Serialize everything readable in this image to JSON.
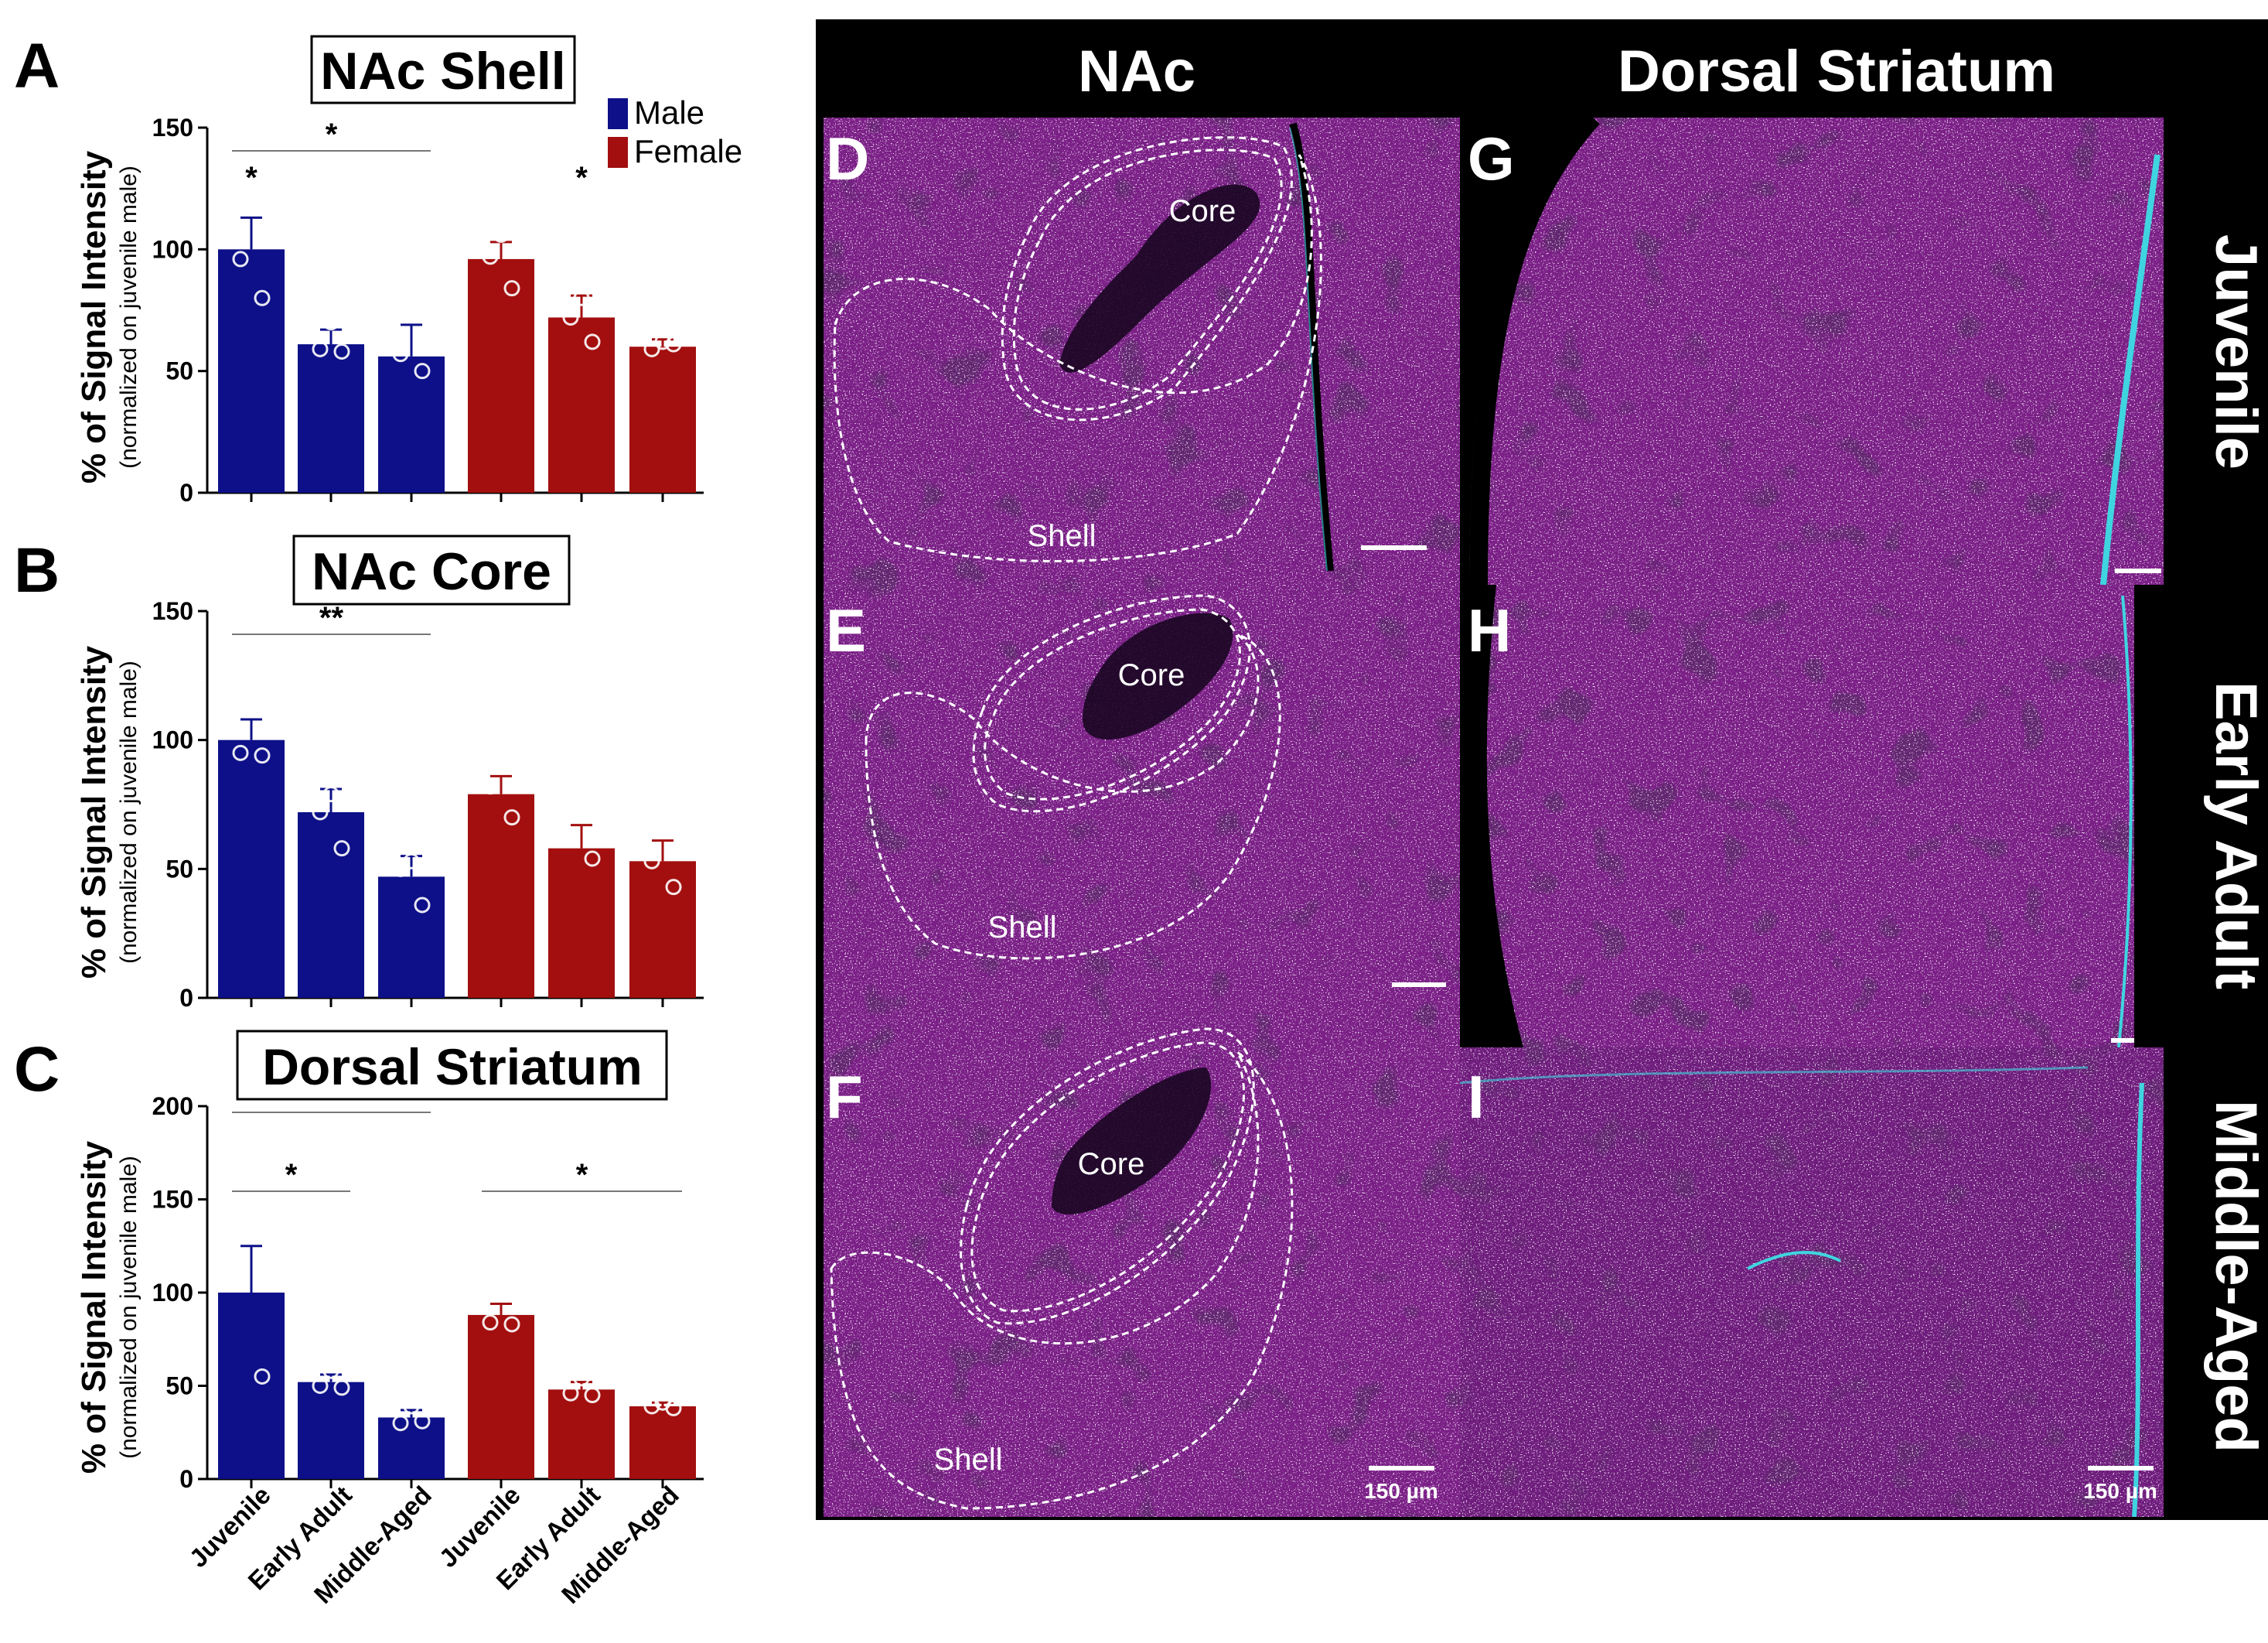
{
  "chart_data": [
    {
      "type": "bar",
      "panel": "A",
      "title": "NAc Shell",
      "ylabel": "% of Signal Intensity",
      "ylabel_sub": "(normalized on juvenile male)",
      "ylim": [
        0,
        150
      ],
      "yticks": [
        "0",
        "50",
        "100",
        "150"
      ],
      "legend": {
        "position": "top-right",
        "entries": [
          {
            "name": "Male",
            "color": "#0d1088"
          },
          {
            "name": "Female",
            "color": "#a30f0f"
          }
        ]
      },
      "series": [
        {
          "name": "Male",
          "color": "#0d1088",
          "means": [
            100,
            61,
            56
          ],
          "sem": [
            13,
            6,
            13
          ],
          "points": [
            [
              117,
              96,
              80
            ],
            [
              70,
              59,
              58
            ],
            [
              80,
              57,
              50
            ]
          ]
        },
        {
          "name": "Female",
          "color": "#a30f0f",
          "means": [
            96,
            72,
            60
          ],
          "sem": [
            7,
            9,
            3
          ],
          "points": [
            [
              106,
              97,
              84
            ],
            [
              80,
              72,
              62
            ],
            [
              62,
              59,
              61
            ]
          ]
        }
      ],
      "significance": [
        {
          "label": "*",
          "type": "bracket",
          "from": [
            0,
            0
          ],
          "to": [
            0,
            2
          ]
        },
        {
          "label": "*",
          "type": "above",
          "at": [
            0,
            0
          ]
        },
        {
          "label": "*",
          "type": "above",
          "at": [
            1,
            1
          ]
        }
      ]
    },
    {
      "type": "bar",
      "panel": "B",
      "title": "NAc Core",
      "ylabel": "% of Signal Intensity",
      "ylabel_sub": "(normalized on juvenile male)",
      "ylim": [
        0,
        150
      ],
      "yticks": [
        "0",
        "50",
        "100",
        "150"
      ],
      "series": [
        {
          "name": "Male",
          "color": "#0d1088",
          "means": [
            100,
            72,
            47
          ],
          "sem": [
            8,
            9,
            8
          ],
          "points": [
            [
              115,
              95,
              94
            ],
            [
              79,
              72,
              58
            ],
            [
              53,
              50,
              36
            ]
          ]
        },
        {
          "name": "Female",
          "color": "#a30f0f",
          "means": [
            79,
            58,
            53
          ],
          "sem": [
            7,
            9,
            8
          ],
          "points": [
            [
              92,
              82,
              70
            ],
            [
              73,
              62,
              54
            ],
            [
              66,
              53,
              43
            ]
          ]
        }
      ],
      "significance": [
        {
          "label": "**",
          "type": "bracket",
          "from": [
            0,
            0
          ],
          "to": [
            0,
            2
          ]
        }
      ]
    },
    {
      "type": "bar",
      "panel": "C",
      "title": "Dorsal Striatum",
      "ylabel": "% of Signal Intensity",
      "ylabel_sub": "(normalized on juvenile male)",
      "ylim": [
        0,
        200
      ],
      "yticks": [
        "0",
        "50",
        "100",
        "150",
        "200"
      ],
      "categories": [
        "Juvenile",
        "Early Adult",
        "Middle-Aged",
        "Juvenile",
        "Early Adult",
        "Middle-Aged"
      ],
      "series": [
        {
          "name": "Male",
          "color": "#0d1088",
          "means": [
            100,
            52,
            33
          ],
          "sem": [
            25,
            4,
            4
          ],
          "points": [
            [
              142,
              105,
              55
            ],
            [
              58,
              50,
              49
            ],
            [
              39,
              30,
              31
            ]
          ]
        },
        {
          "name": "Female",
          "color": "#a30f0f",
          "means": [
            88,
            48,
            39
          ],
          "sem": [
            6,
            4,
            2
          ],
          "points": [
            [
              100,
              84,
              83
            ],
            [
              54,
              46,
              45
            ],
            [
              41,
              39,
              38
            ]
          ]
        }
      ],
      "significance": [
        {
          "label": "*",
          "type": "bracket",
          "from": [
            0,
            0
          ],
          "to": [
            0,
            1
          ]
        },
        {
          "label": "**",
          "type": "bracket",
          "from": [
            0,
            0
          ],
          "to": [
            0,
            2
          ]
        },
        {
          "label": "*",
          "type": "bracket",
          "from": [
            1,
            0
          ],
          "to": [
            1,
            2
          ]
        }
      ]
    }
  ],
  "panel_letters": {
    "a": "A",
    "b": "B",
    "c": "C",
    "d": "D",
    "e": "E",
    "f": "F",
    "g": "G",
    "h": "H",
    "i": "I"
  },
  "micrograph": {
    "col_headers": {
      "nac": "NAc",
      "dorsal": "Dorsal Striatum"
    },
    "row_labels": {
      "juvenile": "Juvenile",
      "early": "Early Adult",
      "middle": "Middle-Aged"
    },
    "region_labels": {
      "core": "Core",
      "shell": "Shell"
    },
    "scale_bar": "150 µm",
    "colors": {
      "background": "#000000",
      "tissue": "#7a1f86",
      "tissue_dark": "#4a1257",
      "nuclei": "#e7c9ee",
      "cyan": "#3fd5e0"
    }
  }
}
